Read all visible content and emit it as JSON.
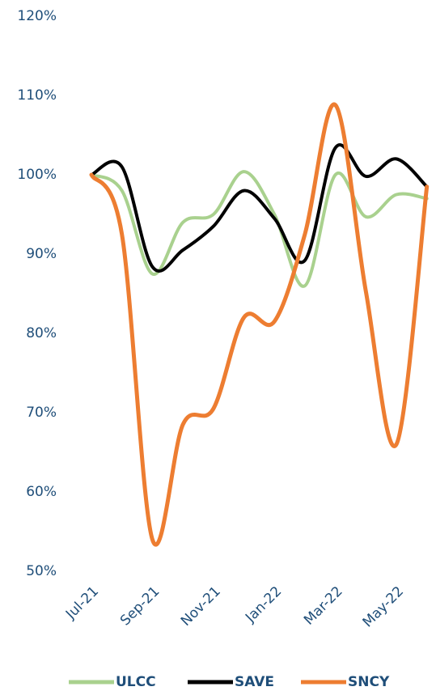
{
  "chart_data": {
    "type": "line",
    "categories": [
      "Jul-21",
      null,
      "Sep-21",
      null,
      "Nov-21",
      null,
      "Jan-22",
      null,
      "Mar-22",
      null,
      "May-22",
      null
    ],
    "series": [
      {
        "name": "ULCC",
        "color": "#a9d18e",
        "values": [
          100,
          98,
          87.5,
          94,
          95,
          100.4,
          95,
          86,
          100,
          94.7,
          97.5,
          97
        ]
      },
      {
        "name": "SAVE",
        "color": "#000000",
        "values": [
          100,
          101,
          88.4,
          90.5,
          93.5,
          98,
          94.5,
          89.2,
          103.4,
          99.8,
          102,
          98.5
        ]
      },
      {
        "name": "SNCY",
        "color": "#ed7d31",
        "values": [
          100,
          92.5,
          54,
          68.5,
          70.5,
          82,
          81.5,
          92.5,
          108.8,
          85.3,
          66,
          98.5
        ]
      }
    ],
    "ylim": [
      50,
      120
    ],
    "yticks": [
      {
        "value": 50,
        "label": "50%"
      },
      {
        "value": 60,
        "label": "60%"
      },
      {
        "value": 70,
        "label": "70%"
      },
      {
        "value": 80,
        "label": "80%"
      },
      {
        "value": 90,
        "label": "90%"
      },
      {
        "value": 100,
        "label": "100%"
      },
      {
        "value": 110,
        "label": "110%"
      },
      {
        "value": 120,
        "label": "120%"
      }
    ],
    "grid": false,
    "legend": "bottom"
  }
}
